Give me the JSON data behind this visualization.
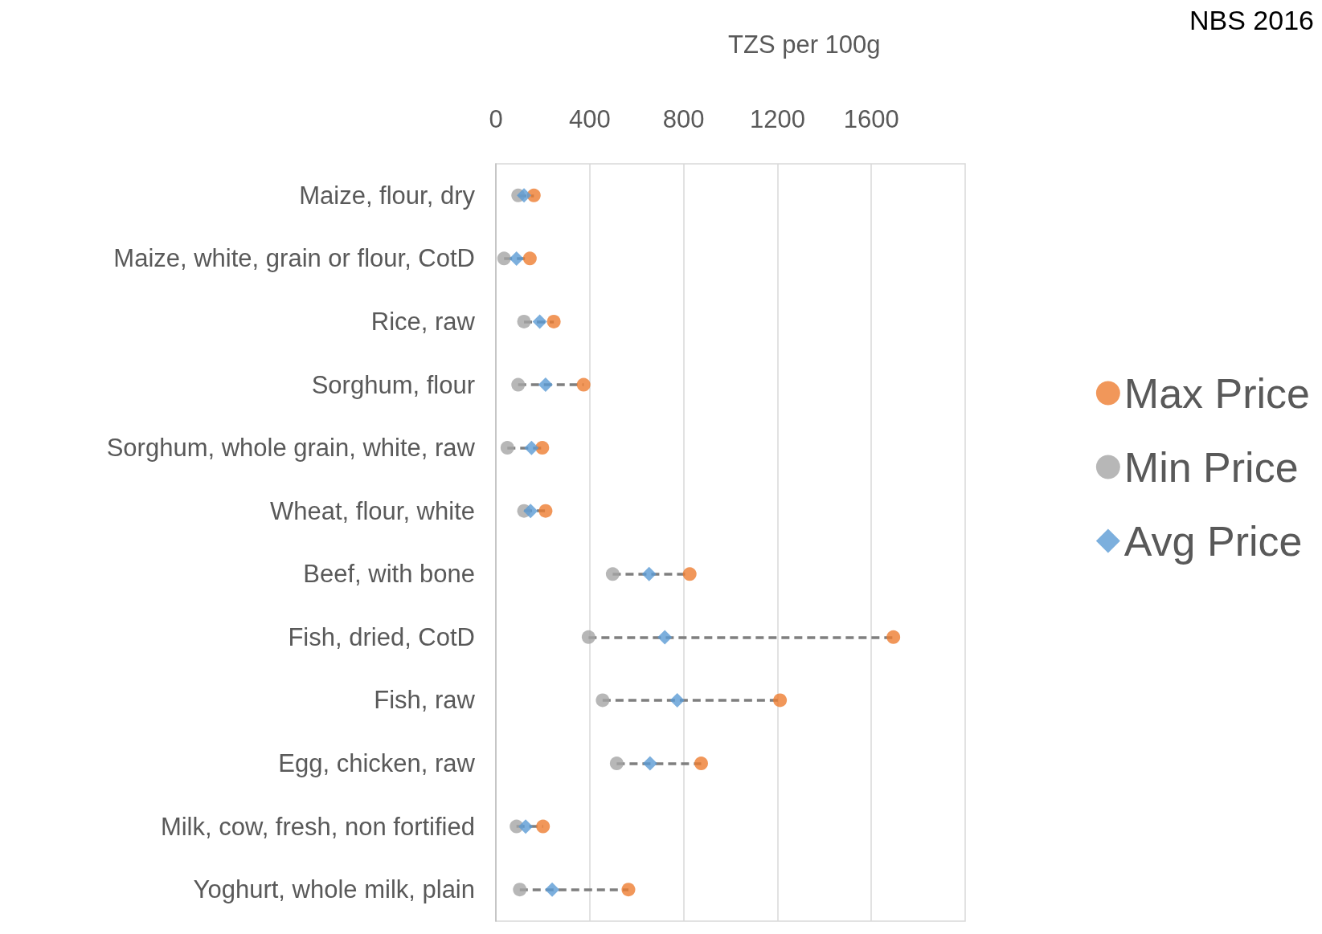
{
  "chart_data": {
    "type": "scatter",
    "orientation": "horizontal",
    "xlabel": "TZS per 100g",
    "categories": [
      "Maize, flour, dry",
      "Maize, white, grain or flour, CotD",
      "Rice, raw",
      "Sorghum, flour",
      "Sorghum, whole grain, white, raw",
      "Wheat, flour, white",
      "Beef, with bone",
      "Fish, dried, CotD",
      "Fish, raw",
      "Egg, chicken, raw",
      "Milk, cow, fresh, non fortified",
      "Yoghurt, whole milk, plain"
    ],
    "series": [
      {
        "name": "Max Price",
        "color": "#ed7d31",
        "marker": "circle",
        "values": [
          162,
          145,
          247,
          374,
          198,
          212,
          826,
          1694,
          1211,
          875,
          201,
          565
        ]
      },
      {
        "name": "Min Price",
        "color": "#a5a5a5",
        "marker": "circle",
        "values": [
          95,
          35,
          120,
          95,
          49,
          120,
          498,
          395,
          455,
          515,
          88,
          102
        ]
      },
      {
        "name": "Avg Price",
        "color": "#5b9bd5",
        "marker": "diamond",
        "values": [
          120,
          88,
          187,
          212,
          152,
          148,
          653,
          720,
          773,
          657,
          127,
          240
        ]
      }
    ],
    "line_style": "dashed",
    "xlim": [
      0,
      2000
    ],
    "xticks": [
      0,
      400,
      800,
      1200,
      1600
    ],
    "grid": "x",
    "legend": "right",
    "annotations": [
      "NBS 2016"
    ]
  }
}
